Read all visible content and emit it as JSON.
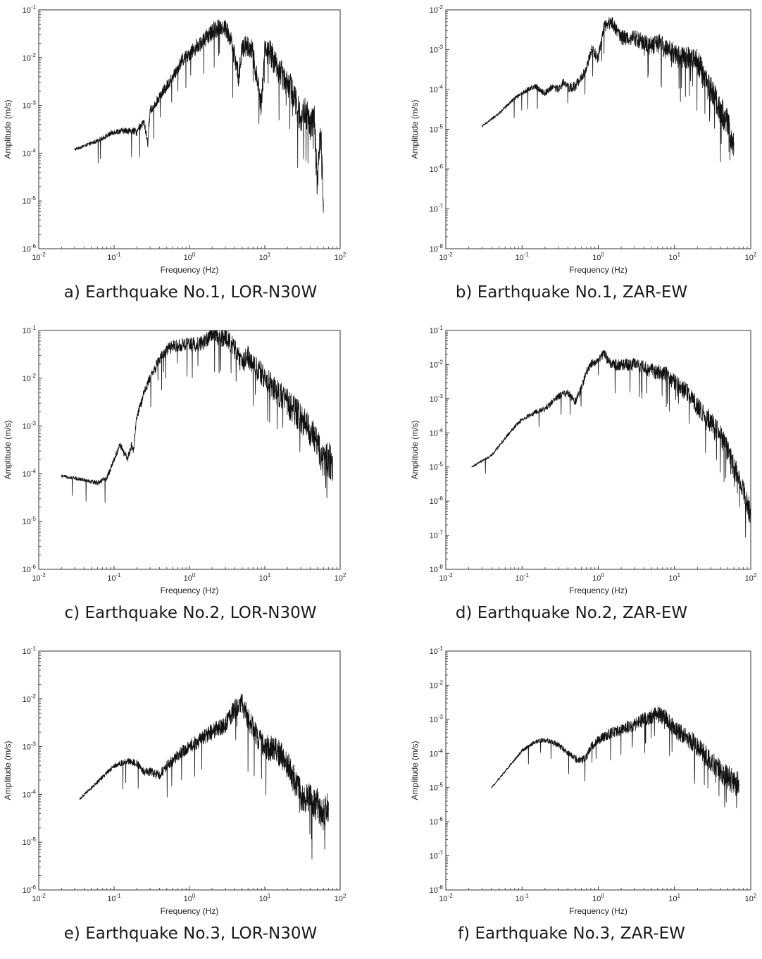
{
  "panels": [
    {
      "caption": "a) Earthquake No.1, LOR-N30W",
      "chart_data": {
        "type": "line",
        "xlabel": "Frequency (Hz)",
        "ylabel": "Amplitude (m/s)",
        "xscale": "log",
        "yscale": "log",
        "xlim": [
          0.01,
          100
        ],
        "ylim": [
          1e-06,
          0.1
        ],
        "x_ticks": [
          "10^-2",
          "10^-1",
          "10^0",
          "10^1",
          "10^2"
        ],
        "y_ticks": [
          "10^-6",
          "10^-5",
          "10^-4",
          "10^-3",
          "10^-2",
          "10^-1"
        ],
        "series": [
          {
            "name": "LOR-N30W",
            "x": [
              0.03,
              0.06,
              0.1,
              0.15,
              0.2,
              0.25,
              0.28,
              0.3,
              0.32,
              0.35,
              0.4,
              0.5,
              0.6,
              0.7,
              0.8,
              1.0,
              1.2,
              1.5,
              2.0,
              2.5,
              3.0,
              3.5,
              4.0,
              4.5,
              5.0,
              6.0,
              7.0,
              8.0,
              9.0,
              10,
              12,
              15,
              20,
              25,
              30,
              35,
              40,
              45,
              50,
              55,
              60
            ],
            "values": [
              0.00012,
              0.00018,
              0.00028,
              0.0003,
              0.00028,
              0.00045,
              0.00016,
              0.0008,
              0.00085,
              0.0011,
              0.0015,
              0.0025,
              0.004,
              0.006,
              0.009,
              0.012,
              0.016,
              0.022,
              0.035,
              0.045,
              0.042,
              0.025,
              0.01,
              0.004,
              0.015,
              0.018,
              0.012,
              0.003,
              0.001,
              0.015,
              0.012,
              0.006,
              0.003,
              0.0015,
              0.0005,
              0.0008,
              0.0003,
              0.0006,
              2e-05,
              0.0003,
              1e-05
            ],
            "spiky": true
          }
        ]
      }
    },
    {
      "caption": "b) Earthquake No.1, ZAR-EW",
      "chart_data": {
        "type": "line",
        "xlabel": "Frequency (Hz)",
        "ylabel": "Amplitude (m/s)",
        "xscale": "log",
        "yscale": "log",
        "xlim": [
          0.01,
          100
        ],
        "ylim": [
          1e-08,
          0.01
        ],
        "x_ticks": [
          "10^-2",
          "10^-1",
          "10^0",
          "10^1",
          "10^2"
        ],
        "y_ticks": [
          "10^-8",
          "10^-7",
          "10^-6",
          "10^-5",
          "10^-4",
          "10^-3",
          "10^-2"
        ],
        "series": [
          {
            "name": "ZAR-EW",
            "x": [
              0.03,
              0.05,
              0.08,
              0.12,
              0.15,
              0.2,
              0.25,
              0.3,
              0.35,
              0.4,
              0.5,
              0.6,
              0.7,
              0.8,
              0.9,
              1.0,
              1.2,
              1.5,
              2.0,
              3.0,
              4.0,
              5.0,
              6.0,
              8.0,
              10,
              15,
              20,
              25,
              30,
              40,
              50,
              60
            ],
            "values": [
              1.2e-05,
              2.5e-05,
              6e-05,
              0.0001,
              0.00012,
              8e-05,
              0.00012,
              0.0001,
              0.00015,
              0.00011,
              0.00012,
              0.0002,
              0.0003,
              0.001,
              0.0008,
              0.0006,
              0.004,
              0.005,
              0.002,
              0.002,
              0.0015,
              0.0012,
              0.0015,
              0.001,
              0.0008,
              0.0006,
              0.0005,
              0.0002,
              0.0001,
              3e-05,
              1.5e-05,
              3e-06
            ],
            "spiky": true
          }
        ]
      }
    },
    {
      "caption": "c) Earthquake No.2, LOR-N30W",
      "chart_data": {
        "type": "line",
        "xlabel": "Frequency (Hz)",
        "ylabel": "Amplitude (m/s)",
        "xscale": "log",
        "yscale": "log",
        "xlim": [
          0.01,
          100
        ],
        "ylim": [
          1e-06,
          0.1
        ],
        "x_ticks": [
          "10^-2",
          "10^-1",
          "10^0",
          "10^1",
          "10^2"
        ],
        "y_ticks": [
          "10^-6",
          "10^-5",
          "10^-4",
          "10^-3",
          "10^-2",
          "10^-1"
        ],
        "series": [
          {
            "name": "LOR-N30W",
            "x": [
              0.02,
              0.04,
              0.06,
              0.08,
              0.1,
              0.12,
              0.15,
              0.17,
              0.18,
              0.2,
              0.25,
              0.3,
              0.4,
              0.5,
              0.7,
              1.0,
              1.5,
              2.0,
              2.5,
              3.0,
              4.0,
              5.0,
              6.0,
              8.0,
              10,
              15,
              20,
              30,
              40,
              50,
              60,
              70,
              80
            ],
            "values": [
              9e-05,
              7.5e-05,
              6.5e-05,
              8e-05,
              0.0002,
              0.0004,
              0.0002,
              0.0004,
              0.0003,
              0.0015,
              0.005,
              0.01,
              0.025,
              0.04,
              0.05,
              0.05,
              0.055,
              0.09,
              0.07,
              0.075,
              0.04,
              0.02,
              0.03,
              0.015,
              0.01,
              0.005,
              0.003,
              0.0015,
              0.0008,
              0.0004,
              0.0002,
              0.0002,
              0.00015
            ],
            "spiky": true
          }
        ]
      }
    },
    {
      "caption": "d) Earthquake No.2, ZAR-EW",
      "chart_data": {
        "type": "line",
        "xlabel": "Frequency (Hz)",
        "ylabel": "Amplitude (m/s)",
        "xscale": "log",
        "yscale": "log",
        "xlim": [
          0.01,
          100
        ],
        "ylim": [
          1e-08,
          0.1
        ],
        "x_ticks": [
          "10^-2",
          "10^-1",
          "10^0",
          "10^1",
          "10^2"
        ],
        "y_ticks": [
          "10^-8",
          "10^-7",
          "10^-6",
          "10^-5",
          "10^-4",
          "10^-3",
          "10^-2",
          "10^-1"
        ],
        "series": [
          {
            "name": "ZAR-EW",
            "x": [
              0.022,
              0.04,
              0.06,
              0.08,
              0.1,
              0.15,
              0.2,
              0.3,
              0.4,
              0.5,
              0.6,
              0.7,
              0.8,
              1.0,
              1.2,
              1.5,
              2.0,
              3.0,
              4.0,
              6.0,
              8.0,
              10,
              15,
              20,
              30,
              40,
              50,
              60,
              70,
              80,
              90,
              100
            ],
            "values": [
              1e-05,
              2.2e-05,
              7e-05,
              0.00015,
              0.00025,
              0.0004,
              0.0005,
              0.0012,
              0.0015,
              0.0008,
              0.002,
              0.006,
              0.01,
              0.015,
              0.02,
              0.01,
              0.01,
              0.01,
              0.008,
              0.006,
              0.005,
              0.003,
              0.0015,
              0.0006,
              0.0002,
              8e-05,
              3e-05,
              1e-05,
              5e-06,
              2e-06,
              8e-07,
              4e-07
            ],
            "spiky": true
          }
        ]
      }
    },
    {
      "caption": "e) Earthquake No.3, LOR-N30W",
      "chart_data": {
        "type": "line",
        "xlabel": "Frequency (Hz)",
        "ylabel": "Amplitude (m/s)",
        "xscale": "log",
        "yscale": "log",
        "xlim": [
          0.01,
          100
        ],
        "ylim": [
          1e-06,
          0.1
        ],
        "x_ticks": [
          "10^-2",
          "10^-1",
          "10^0",
          "10^1",
          "10^2"
        ],
        "y_ticks": [
          "10^-6",
          "10^-5",
          "10^-4",
          "10^-3",
          "10^-2",
          "10^-1"
        ],
        "series": [
          {
            "name": "LOR-N30W",
            "x": [
              0.035,
              0.06,
              0.1,
              0.15,
              0.2,
              0.25,
              0.3,
              0.4,
              0.5,
              0.6,
              0.8,
              1.0,
              1.5,
              2.0,
              3.0,
              4.0,
              5.0,
              6.0,
              8.0,
              10,
              15,
              20,
              25,
              30,
              40,
              50,
              60,
              70
            ],
            "values": [
              8e-05,
              0.00018,
              0.0004,
              0.0005,
              0.00045,
              0.0003,
              0.0003,
              0.00025,
              0.0004,
              0.0005,
              0.0008,
              0.001,
              0.0015,
              0.002,
              0.003,
              0.006,
              0.008,
              0.004,
              0.0015,
              0.001,
              0.0008,
              0.0004,
              0.0002,
              0.0001,
              8e-05,
              6e-05,
              4e-05,
              5e-05
            ],
            "spiky": true
          }
        ]
      }
    },
    {
      "caption": "f) Earthquake No.3, ZAR-EW",
      "chart_data": {
        "type": "line",
        "xlabel": "Frequency (Hz)",
        "ylabel": "Amplitude (m/s)",
        "xscale": "log",
        "yscale": "log",
        "xlim": [
          0.01,
          100
        ],
        "ylim": [
          1e-08,
          0.1
        ],
        "x_ticks": [
          "10^-2",
          "10^-1",
          "10^0",
          "10^1",
          "10^2"
        ],
        "y_ticks": [
          "10^-8",
          "10^-7",
          "10^-6",
          "10^-5",
          "10^-4",
          "10^-3",
          "10^-2",
          "10^-1"
        ],
        "series": [
          {
            "name": "ZAR-EW",
            "x": [
              0.04,
              0.06,
              0.1,
              0.15,
              0.2,
              0.3,
              0.4,
              0.5,
              0.6,
              0.7,
              0.8,
              1.0,
              1.5,
              2.0,
              3.0,
              4.0,
              5.0,
              6.0,
              8.0,
              10,
              15,
              20,
              30,
              40,
              50,
              60,
              70
            ],
            "values": [
              1e-05,
              3e-05,
              0.00012,
              0.00022,
              0.00025,
              0.00018,
              0.0001,
              7e-05,
              6e-05,
              8e-05,
              0.00015,
              0.00025,
              0.0004,
              0.0005,
              0.0007,
              0.001,
              0.0012,
              0.0015,
              0.001,
              0.0005,
              0.0003,
              0.00015,
              6e-05,
              3e-05,
              2e-05,
              1.5e-05,
              1.2e-05
            ],
            "spiky": true
          }
        ]
      }
    }
  ]
}
